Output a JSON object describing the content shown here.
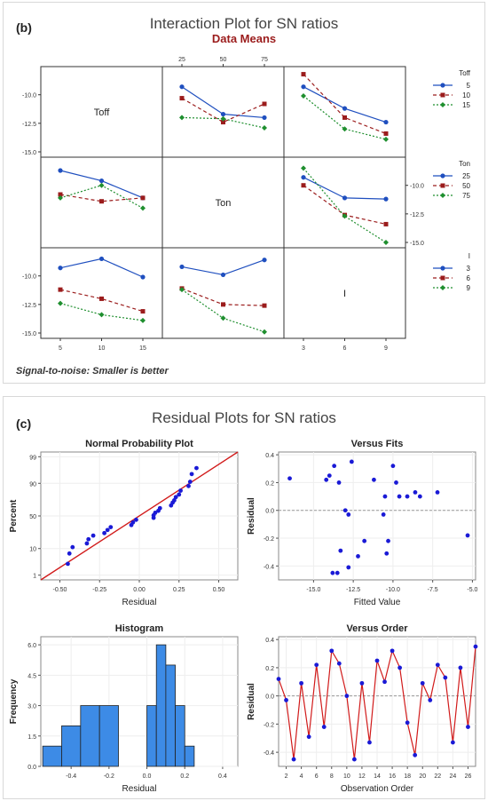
{
  "panel_b": {
    "label": "(b)",
    "title": "Interaction Plot for SN ratios",
    "subtitle": "Data Means",
    "footnote": "Signal-to-noise: Smaller is better"
  },
  "panel_c": {
    "label": "(c)",
    "title": "Residual Plots for SN ratios"
  },
  "colors": {
    "s1": "#1f4fbf",
    "s2": "#9b1c1c",
    "s3": "#1f8f2f",
    "line": "#d11a1a",
    "marker": "#1a1ad6",
    "bar": "#3d8be6"
  },
  "chart_data": [
    {
      "type": "line",
      "title": "Interaction Plot for SN ratios",
      "subtitle": "Data Means",
      "factors": [
        {
          "name": "Toff",
          "levels": [
            "5",
            "10",
            "15"
          ],
          "ticks": [
            "5",
            "10",
            "15"
          ]
        },
        {
          "name": "Ton",
          "levels": [
            "25",
            "50",
            "75"
          ],
          "ticks": [
            "25",
            "50",
            "75"
          ]
        },
        {
          "name": "I",
          "levels": [
            "3",
            "6",
            "9"
          ],
          "ticks": [
            "3",
            "6",
            "9"
          ]
        }
      ],
      "y_ticks": [
        "-10.0",
        "-12.5",
        "-15.0"
      ],
      "ylim": [
        -15,
        -8
      ],
      "legends": [
        {
          "title": "Toff",
          "entries": [
            "5",
            "10",
            "15"
          ]
        },
        {
          "title": "Ton",
          "entries": [
            "25",
            "50",
            "75"
          ]
        },
        {
          "title": "I",
          "entries": [
            "3",
            "6",
            "9"
          ]
        }
      ],
      "cells": [
        {
          "row": 0,
          "col": 1,
          "x_factor": "Ton",
          "series_factor": "Toff",
          "series": [
            [
              -9.3,
              -11.7,
              -12.0
            ],
            [
              -10.3,
              -12.4,
              -10.8
            ],
            [
              -12.0,
              -12.1,
              -12.9
            ]
          ]
        },
        {
          "row": 0,
          "col": 2,
          "x_factor": "I",
          "series_factor": "Toff",
          "series": [
            [
              -9.3,
              -11.2,
              -12.4
            ],
            [
              -8.2,
              -12.0,
              -13.4
            ],
            [
              -10.1,
              -13.0,
              -13.9
            ]
          ]
        },
        {
          "row": 1,
          "col": 0,
          "x_factor": "Toff",
          "series_factor": "Ton",
          "series": [
            [
              -8.7,
              -9.6,
              -11.1
            ],
            [
              -10.8,
              -11.4,
              -11.1
            ],
            [
              -11.1,
              -10.0,
              -12.0
            ]
          ]
        },
        {
          "row": 1,
          "col": 2,
          "x_factor": "I",
          "series_factor": "Ton",
          "series": [
            [
              -9.3,
              -11.1,
              -11.2
            ],
            [
              -10.0,
              -12.6,
              -13.4
            ],
            [
              -8.5,
              -12.7,
              -15.0
            ]
          ]
        },
        {
          "row": 2,
          "col": 0,
          "x_factor": "Toff",
          "series_factor": "I",
          "series": [
            [
              -9.3,
              -8.5,
              -10.1
            ],
            [
              -11.2,
              -12.0,
              -13.1
            ],
            [
              -12.4,
              -13.4,
              -13.9
            ]
          ]
        },
        {
          "row": 2,
          "col": 1,
          "x_factor": "Ton",
          "series_factor": "I",
          "series": [
            [
              -9.2,
              -9.9,
              -8.6
            ],
            [
              -11.1,
              -12.5,
              -12.6
            ],
            [
              -11.2,
              -13.7,
              -14.9
            ]
          ]
        }
      ]
    },
    {
      "type": "scatter",
      "title": "Normal Probability Plot",
      "xlabel": "Residual",
      "ylabel": "Percent",
      "x_ticks": [
        "-0.50",
        "-0.25",
        "0.00",
        "0.25",
        "0.50"
      ],
      "x_tick_values": [
        -0.5,
        -0.25,
        0,
        0.25,
        0.5
      ],
      "xlim": [
        -0.62,
        0.62
      ],
      "y_ticks": [
        "1",
        "10",
        "50",
        "90",
        "99"
      ],
      "y_tick_values": [
        1,
        10,
        50,
        90,
        99
      ],
      "points": [
        [
          -0.45,
          3
        ],
        [
          -0.44,
          7
        ],
        [
          -0.42,
          11
        ],
        [
          -0.33,
          14
        ],
        [
          -0.32,
          18
        ],
        [
          -0.29,
          22
        ],
        [
          -0.22,
          25
        ],
        [
          -0.2,
          29
        ],
        [
          -0.18,
          33
        ],
        [
          -0.05,
          36
        ],
        [
          -0.04,
          40
        ],
        [
          -0.02,
          44
        ],
        [
          0.09,
          47
        ],
        [
          0.09,
          51
        ],
        [
          0.1,
          55
        ],
        [
          0.12,
          58
        ],
        [
          0.13,
          62
        ],
        [
          0.2,
          66
        ],
        [
          0.21,
          70
        ],
        [
          0.22,
          73
        ],
        [
          0.23,
          77
        ],
        [
          0.25,
          80
        ],
        [
          0.26,
          84
        ],
        [
          0.31,
          88
        ],
        [
          0.32,
          91
        ],
        [
          0.33,
          95
        ],
        [
          0.36,
          97
        ]
      ],
      "fit_line": [
        [
          -0.62,
          0.6
        ],
        [
          0.62,
          99.4
        ]
      ]
    },
    {
      "type": "scatter",
      "title": "Versus Fits",
      "xlabel": "Fitted Value",
      "ylabel": "Residual",
      "x_ticks": [
        "-15.0",
        "-12.5",
        "-10.0",
        "-7.5",
        "-5.0"
      ],
      "x_tick_values": [
        -15,
        -12.5,
        -10,
        -7.5,
        -5
      ],
      "xlim": [
        -17.2,
        -4.8
      ],
      "y_ticks": [
        "0.4",
        "0.2",
        "0.0",
        "-0.2",
        "-0.4"
      ],
      "y_tick_values": [
        0.4,
        0.2,
        0,
        -0.2,
        -0.4
      ],
      "ylim": [
        -0.5,
        0.42
      ],
      "reference_line": 0,
      "points": [
        [
          -16.5,
          0.23
        ],
        [
          -14.2,
          0.22
        ],
        [
          -14.0,
          0.25
        ],
        [
          -13.7,
          0.32
        ],
        [
          -13.4,
          0.2
        ],
        [
          -13.0,
          0.0
        ],
        [
          -12.8,
          -0.03
        ],
        [
          -12.6,
          0.35
        ],
        [
          -12.2,
          -0.33
        ],
        [
          -12.8,
          -0.41
        ],
        [
          -13.5,
          -0.45
        ],
        [
          -13.8,
          -0.45
        ],
        [
          -13.3,
          -0.29
        ],
        [
          -11.8,
          -0.22
        ],
        [
          -11.2,
          0.22
        ],
        [
          -10.5,
          0.1
        ],
        [
          -10.6,
          -0.03
        ],
        [
          -10.3,
          -0.22
        ],
        [
          -10.4,
          -0.31
        ],
        [
          -10.0,
          0.32
        ],
        [
          -9.8,
          0.2
        ],
        [
          -9.6,
          0.1
        ],
        [
          -9.1,
          0.1
        ],
        [
          -8.6,
          0.13
        ],
        [
          -8.3,
          0.1
        ],
        [
          -7.2,
          0.13
        ],
        [
          -5.3,
          -0.18
        ]
      ]
    },
    {
      "type": "bar",
      "title": "Histogram",
      "xlabel": "Residual",
      "ylabel": "Frequency",
      "x_ticks": [
        "-0.4",
        "-0.2",
        "0.0",
        "0.2",
        "0.4"
      ],
      "x_tick_values": [
        -0.4,
        -0.2,
        0,
        0.2,
        0.4
      ],
      "xlim": [
        -0.56,
        0.48
      ],
      "y_ticks": [
        "0.0",
        "1.5",
        "3.0",
        "4.5",
        "6.0"
      ],
      "y_tick_values": [
        0,
        1.5,
        3,
        4.5,
        6
      ],
      "ylim": [
        0,
        6.4
      ],
      "bin_edges": [
        -0.55,
        -0.5,
        -0.45,
        -0.4,
        -0.35,
        -0.3,
        -0.25,
        -0.2,
        -0.15,
        -0.1,
        -0.05,
        0.0,
        0.05,
        0.1,
        0.15,
        0.2,
        0.25,
        0.3,
        0.35,
        0.4,
        0.45
      ],
      "bins": [
        {
          "from": -0.55,
          "to": -0.45,
          "count": 1
        },
        {
          "from": -0.45,
          "to": -0.35,
          "count": 2
        },
        {
          "from": -0.35,
          "to": -0.25,
          "count": 3
        },
        {
          "from": -0.25,
          "to": -0.15,
          "count": 3
        },
        {
          "from": 0.0,
          "to": 0.05,
          "count": 3
        },
        {
          "from": 0.05,
          "to": 0.1,
          "count": 6
        },
        {
          "from": 0.1,
          "to": 0.15,
          "count": 5
        },
        {
          "from": 0.15,
          "to": 0.2,
          "count": 3
        },
        {
          "from": 0.2,
          "to": 0.25,
          "count": 1
        }
      ]
    },
    {
      "type": "line",
      "title": "Versus Order",
      "xlabel": "Observation Order",
      "ylabel": "Residual",
      "x_ticks": [
        "2",
        "4",
        "6",
        "8",
        "10",
        "12",
        "14",
        "16",
        "18",
        "20",
        "22",
        "24",
        "26"
      ],
      "x_tick_values": [
        2,
        4,
        6,
        8,
        10,
        12,
        14,
        16,
        18,
        20,
        22,
        24,
        26
      ],
      "xlim": [
        1,
        27
      ],
      "y_ticks": [
        "0.4",
        "0.2",
        "0.0",
        "-0.2",
        "-0.4"
      ],
      "y_tick_values": [
        0.4,
        0.2,
        0,
        -0.2,
        -0.4
      ],
      "ylim": [
        -0.5,
        0.42
      ],
      "reference_line": 0,
      "values": [
        0.12,
        -0.03,
        -0.45,
        0.09,
        -0.29,
        0.22,
        -0.22,
        0.32,
        0.23,
        0.0,
        -0.45,
        0.09,
        -0.33,
        0.25,
        0.1,
        0.32,
        0.2,
        -0.19,
        -0.42,
        0.09,
        -0.03,
        0.22,
        0.13,
        -0.33,
        0.2,
        -0.22,
        0.35
      ]
    }
  ]
}
